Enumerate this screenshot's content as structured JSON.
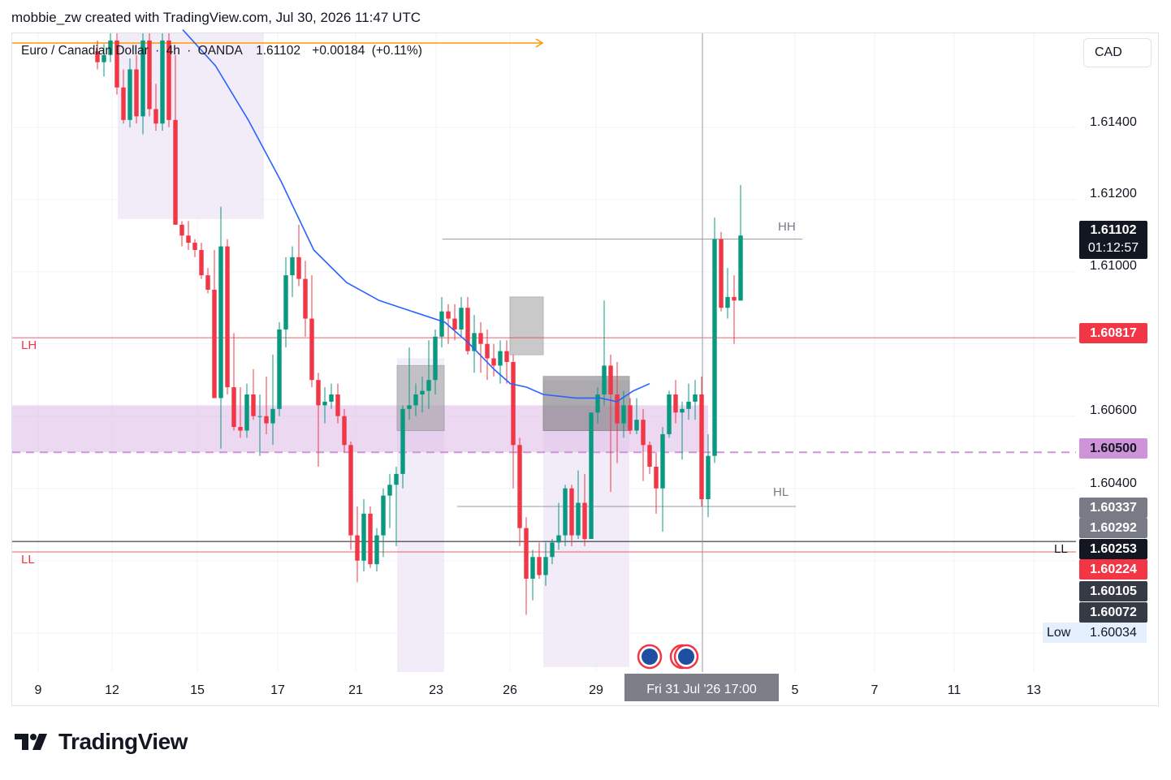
{
  "header": {
    "text": "mobbie_zw created with TradingView.com, Jul 30, 2026 11:47 UTC"
  },
  "symbol": {
    "name": "Euro / Canadian Dollar",
    "interval": "4h",
    "broker": "OANDA",
    "price": "1.61102",
    "change": "+0.00184",
    "change_pct": "(+0.11%)",
    "separator": "·"
  },
  "currency_button": "CAD",
  "footer": {
    "brand": "TradingView"
  },
  "colors": {
    "up": "#089981",
    "down": "#f23645",
    "ma": "#2962ff",
    "zone": "#e1bee7",
    "resistance": "#f23645",
    "dark": "#131722"
  },
  "chart_data": {
    "type": "candlestick",
    "price_range": [
      1.5994,
      1.6166
    ],
    "y_ticks": [
      "1.61400",
      "1.61200",
      "1.61000",
      "1.60600",
      "1.60400"
    ],
    "x_ticks": [
      "9",
      "12",
      "15",
      "17",
      "21",
      "23",
      "26",
      "29",
      "5",
      "7",
      "11",
      "13"
    ],
    "price_labels": [
      {
        "value": "1.61102",
        "countdown": "01:12:57",
        "style": "last"
      },
      {
        "value": "1.60817",
        "style": "red"
      },
      {
        "value": "1.60500",
        "style": "purple"
      },
      {
        "value": "1.60337",
        "style": "gray"
      },
      {
        "value": "1.60292",
        "style": "gray"
      },
      {
        "value": "1.60253",
        "style": "black"
      },
      {
        "value": "1.60224",
        "style": "red"
      },
      {
        "value": "1.60105",
        "style": "dark"
      },
      {
        "value": "1.60072",
        "style": "dark"
      }
    ],
    "low": {
      "label": "Low",
      "value": "1.60034"
    },
    "crosshair_date": "Fri 31 Jul '26   17:00",
    "structure_labels": {
      "hh": {
        "text": "HH",
        "price": 1.6109
      },
      "hl": {
        "text": "HL",
        "price": 1.6035
      },
      "lh": {
        "text": "LH",
        "price": 1.60817
      },
      "ll": {
        "text": "LL",
        "price": 1.60224
      },
      "ll_right": {
        "text": "LL",
        "price": 1.60253
      }
    },
    "zones": {
      "supply_demand": [
        1.605,
        1.6063
      ]
    },
    "candles": [
      [
        1.6161,
        1.6164,
        1.6156,
        1.6158
      ],
      [
        1.6158,
        1.6163,
        1.6154,
        1.616
      ],
      [
        1.616,
        1.6166,
        1.6158,
        1.6164
      ],
      [
        1.6164,
        1.6166,
        1.6149,
        1.6151
      ],
      [
        1.6151,
        1.6156,
        1.6141,
        1.6142
      ],
      [
        1.6142,
        1.6159,
        1.614,
        1.6156
      ],
      [
        1.6156,
        1.616,
        1.6141,
        1.6143
      ],
      [
        1.6143,
        1.6166,
        1.6138,
        1.6164
      ],
      [
        1.6164,
        1.6166,
        1.6143,
        1.6145
      ],
      [
        1.6145,
        1.6152,
        1.6139,
        1.6141
      ],
      [
        1.6141,
        1.6166,
        1.6139,
        1.6164
      ],
      [
        1.6164,
        1.6166,
        1.614,
        1.6142
      ],
      [
        1.6142,
        1.616,
        1.6113,
        1.6113
      ],
      [
        1.6113,
        1.6114,
        1.6107,
        1.611
      ],
      [
        1.611,
        1.6114,
        1.6106,
        1.6108
      ],
      [
        1.6108,
        1.6109,
        1.6104,
        1.6106
      ],
      [
        1.6106,
        1.6108,
        1.6098,
        1.6099
      ],
      [
        1.6099,
        1.6101,
        1.6094,
        1.6095
      ],
      [
        1.6095,
        1.6106,
        1.6065,
        1.6065
      ],
      [
        1.6065,
        1.6118,
        1.6051,
        1.6107
      ],
      [
        1.6107,
        1.6109,
        1.6066,
        1.6068
      ],
      [
        1.6068,
        1.6083,
        1.6056,
        1.6057
      ],
      [
        1.6057,
        1.6068,
        1.6054,
        1.6056
      ],
      [
        1.6056,
        1.6069,
        1.6054,
        1.6066
      ],
      [
        1.6066,
        1.6073,
        1.6059,
        1.606
      ],
      [
        1.606,
        1.6066,
        1.6049,
        1.606
      ],
      [
        1.606,
        1.6071,
        1.6055,
        1.6058
      ],
      [
        1.6058,
        1.6077,
        1.6052,
        1.6062
      ],
      [
        1.6062,
        1.6086,
        1.606,
        1.6084
      ],
      [
        1.6084,
        1.6104,
        1.6079,
        1.6099
      ],
      [
        1.6099,
        1.6107,
        1.6093,
        1.6104
      ],
      [
        1.6104,
        1.6113,
        1.6096,
        1.6098
      ],
      [
        1.6098,
        1.6103,
        1.6082,
        1.6087
      ],
      [
        1.6087,
        1.6099,
        1.6068,
        1.607
      ],
      [
        1.607,
        1.6072,
        1.6046,
        1.6063
      ],
      [
        1.6063,
        1.6068,
        1.6058,
        1.6064
      ],
      [
        1.6064,
        1.6069,
        1.6062,
        1.6066
      ],
      [
        1.6066,
        1.6069,
        1.6058,
        1.606
      ],
      [
        1.606,
        1.6062,
        1.605,
        1.6052
      ],
      [
        1.6052,
        1.6053,
        1.6023,
        1.6027
      ],
      [
        1.6027,
        1.6035,
        1.6014,
        1.602
      ],
      [
        1.602,
        1.6037,
        1.6017,
        1.6033
      ],
      [
        1.6033,
        1.6035,
        1.6018,
        1.6019
      ],
      [
        1.6019,
        1.6029,
        1.6017,
        1.6027
      ],
      [
        1.6027,
        1.604,
        1.6021,
        1.6038
      ],
      [
        1.6038,
        1.6044,
        1.6029,
        1.6041
      ],
      [
        1.6041,
        1.6046,
        1.6024,
        1.6044
      ],
      [
        1.6044,
        1.6063,
        1.604,
        1.6062
      ],
      [
        1.6062,
        1.6079,
        1.6059,
        1.6063
      ],
      [
        1.6063,
        1.6069,
        1.606,
        1.6066
      ],
      [
        1.6066,
        1.6071,
        1.6061,
        1.6067
      ],
      [
        1.6067,
        1.6081,
        1.6062,
        1.607
      ],
      [
        1.607,
        1.6084,
        1.6066,
        1.6082
      ],
      [
        1.6082,
        1.6093,
        1.6079,
        1.6089
      ],
      [
        1.6089,
        1.6091,
        1.608,
        1.6087
      ],
      [
        1.6087,
        1.6091,
        1.6081,
        1.6084
      ],
      [
        1.6084,
        1.6093,
        1.6082,
        1.609
      ],
      [
        1.609,
        1.6093,
        1.6077,
        1.6078
      ],
      [
        1.6078,
        1.6088,
        1.6072,
        1.6083
      ],
      [
        1.6083,
        1.6086,
        1.6072,
        1.608
      ],
      [
        1.608,
        1.6084,
        1.607,
        1.6076
      ],
      [
        1.6076,
        1.608,
        1.6071,
        1.6074
      ],
      [
        1.6074,
        1.6081,
        1.6069,
        1.6078
      ],
      [
        1.6078,
        1.6081,
        1.6069,
        1.6075
      ],
      [
        1.6075,
        1.6077,
        1.604,
        1.6052
      ],
      [
        1.6052,
        1.6054,
        1.6024,
        1.6029
      ],
      [
        1.6029,
        1.6032,
        1.6005,
        1.6015
      ],
      [
        1.6015,
        1.6023,
        1.6009,
        1.6021
      ],
      [
        1.6021,
        1.6025,
        1.6015,
        1.6016
      ],
      [
        1.6016,
        1.6025,
        1.6013,
        1.6021
      ],
      [
        1.6021,
        1.6026,
        1.6019,
        1.6025
      ],
      [
        1.6025,
        1.6036,
        1.6023,
        1.6027
      ],
      [
        1.6027,
        1.6041,
        1.6024,
        1.604
      ],
      [
        1.604,
        1.6041,
        1.6024,
        1.6027
      ],
      [
        1.6027,
        1.6045,
        1.6026,
        1.6036
      ],
      [
        1.6036,
        1.6044,
        1.6024,
        1.6026
      ],
      [
        1.6026,
        1.6061,
        1.6026,
        1.6061
      ],
      [
        1.6061,
        1.6068,
        1.6058,
        1.6066
      ],
      [
        1.6066,
        1.6092,
        1.6063,
        1.6074
      ],
      [
        1.6074,
        1.6077,
        1.6039,
        1.6066
      ],
      [
        1.6066,
        1.6075,
        1.6047,
        1.6058
      ],
      [
        1.6058,
        1.6067,
        1.6054,
        1.6063
      ],
      [
        1.6063,
        1.6065,
        1.6055,
        1.6056
      ],
      [
        1.6056,
        1.6065,
        1.6055,
        1.6059
      ],
      [
        1.6059,
        1.6062,
        1.6042,
        1.6052
      ],
      [
        1.6052,
        1.6053,
        1.6044,
        1.6046
      ],
      [
        1.6046,
        1.605,
        1.6033,
        1.604
      ],
      [
        1.604,
        1.6057,
        1.6028,
        1.6055
      ],
      [
        1.6055,
        1.6067,
        1.6054,
        1.6066
      ],
      [
        1.6066,
        1.607,
        1.6058,
        1.6061
      ],
      [
        1.6061,
        1.6064,
        1.6048,
        1.6062
      ],
      [
        1.6062,
        1.6069,
        1.6059,
        1.6064
      ],
      [
        1.6064,
        1.607,
        1.6059,
        1.6066
      ],
      [
        1.6066,
        1.6071,
        1.6035,
        1.6037
      ],
      [
        1.6037,
        1.6055,
        1.6032,
        1.6049
      ],
      [
        1.6049,
        1.6115,
        1.6047,
        1.6109
      ],
      [
        1.6109,
        1.6111,
        1.6089,
        1.609
      ],
      [
        1.609,
        1.6101,
        1.6087,
        1.6093
      ],
      [
        1.6093,
        1.6099,
        1.608,
        1.6092
      ],
      [
        1.6092,
        1.6124,
        1.6092,
        1.611
      ]
    ],
    "ma": [
      [
        1.6167,
        0.22
      ],
      [
        1.6157,
        0.26
      ],
      [
        1.6142,
        0.3
      ],
      [
        1.6125,
        0.34
      ],
      [
        1.6106,
        0.38
      ],
      [
        1.6097,
        0.42
      ],
      [
        1.6092,
        0.46
      ],
      [
        1.6089,
        0.5
      ],
      [
        1.6086,
        0.54
      ],
      [
        1.608,
        0.57
      ],
      [
        1.6073,
        0.6
      ],
      [
        1.6069,
        0.62
      ],
      [
        1.6068,
        0.64
      ],
      [
        1.6066,
        0.66
      ],
      [
        1.6065,
        0.7
      ],
      [
        1.6065,
        0.73
      ],
      [
        1.6064,
        0.75
      ],
      [
        1.6067,
        0.77
      ],
      [
        1.6069,
        0.79
      ]
    ]
  }
}
